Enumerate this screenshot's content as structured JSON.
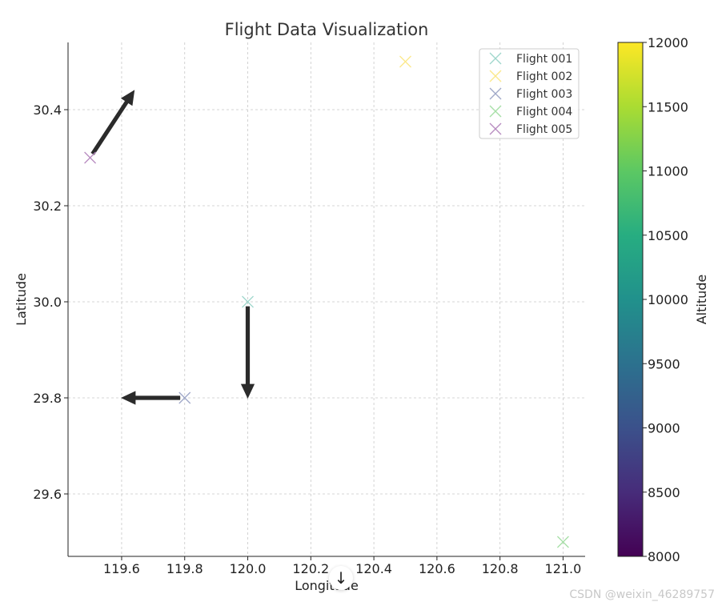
{
  "chart_data": {
    "type": "scatter",
    "title": "Flight Data Visualization",
    "xlabel": "Longitude",
    "ylabel": "Latitude",
    "xlim": [
      119.43,
      121.07
    ],
    "ylim": [
      29.47,
      30.54
    ],
    "xticks": [
      "119.6",
      "119.8",
      "120.0",
      "120.2",
      "120.4",
      "120.6",
      "120.8",
      "121.0"
    ],
    "yticks": [
      "29.6",
      "29.8",
      "30.0",
      "30.2",
      "30.4"
    ],
    "grid": true,
    "legend_position": "top-right",
    "marker": "x",
    "series": [
      {
        "name": "Flight 001",
        "x": 120.0,
        "y": 30.0,
        "altitude": 10500,
        "color": "#9fd7cc"
      },
      {
        "name": "Flight 002",
        "x": 120.5,
        "y": 30.5,
        "altitude": 12000,
        "color": "#fbe88a"
      },
      {
        "name": "Flight 003",
        "x": 119.8,
        "y": 29.8,
        "altitude": 9000,
        "color": "#9fa8c8"
      },
      {
        "name": "Flight 004",
        "x": 121.0,
        "y": 29.5,
        "altitude": 11000,
        "color": "#a6dfa6"
      },
      {
        "name": "Flight 005",
        "x": 119.5,
        "y": 30.3,
        "altitude": 8000,
        "color": "#b78bc0"
      }
    ],
    "arrows": [
      {
        "from": [
          119.5,
          30.3
        ],
        "to": [
          119.64,
          30.44
        ]
      },
      {
        "from": [
          120.0,
          30.0
        ],
        "to": [
          120.0,
          29.8
        ]
      },
      {
        "from": [
          119.8,
          29.8
        ],
        "to": [
          119.6,
          29.8
        ]
      }
    ],
    "colorbar": {
      "label": "Altitude",
      "min": 8000,
      "max": 12000,
      "ticks": [
        "8000",
        "8500",
        "9000",
        "9500",
        "10000",
        "10500",
        "11000",
        "11500",
        "12000"
      ],
      "colormap": "viridis"
    }
  },
  "watermark": "CSDN @weixin_46289757",
  "scroll_icon": "↓"
}
